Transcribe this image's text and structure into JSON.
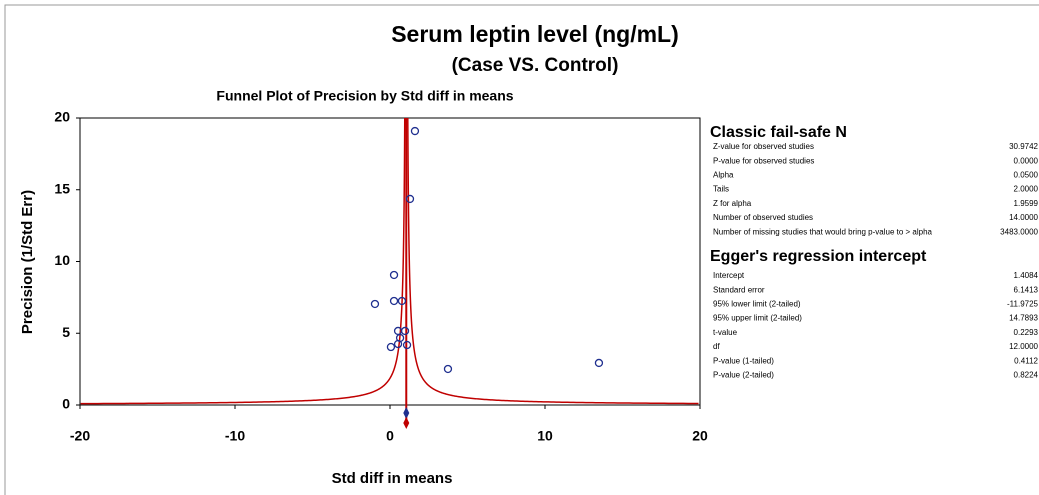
{
  "chart_data": {
    "type": "funnel-scatter",
    "title": "Serum leptin level (ng/mL)",
    "subtitle": "(Case VS. Control)",
    "plot_title": "Funnel Plot of Precision by Std diff in means",
    "x_label": "Std diff in means",
    "y_label": "Precision (1/Std Err)",
    "x": [
      1.61,
      1.29,
      0.26,
      -0.97,
      0.26,
      0.77,
      0.52,
      0.97,
      0.65,
      0.52,
      0.06,
      1.1,
      3.74,
      13.48
    ],
    "values": [
      19.09,
      14.36,
      9.06,
      7.04,
      7.25,
      7.25,
      5.16,
      5.16,
      4.67,
      4.25,
      4.04,
      4.18,
      2.51,
      2.93
    ],
    "point_color": "#1f2f8f",
    "funnel_color": "#c00000",
    "combined_effect": 1.05,
    "xlim": [
      -20,
      20
    ],
    "ylim": [
      0,
      20
    ],
    "xticks": [
      -20,
      -10,
      0,
      10,
      20
    ],
    "yticks": [
      0,
      5,
      10,
      15,
      20
    ]
  },
  "panel": {
    "fail_safe": {
      "heading": "Classic fail-safe N",
      "rows": [
        [
          "Z-value for observed studies",
          "30.9742"
        ],
        [
          "P-value for observed studies",
          "0.0000"
        ],
        [
          "Alpha",
          "0.0500"
        ],
        [
          "Tails",
          "2.0000"
        ],
        [
          "Z for alpha",
          "1.9599"
        ],
        [
          "Number of observed studies",
          "14.0000"
        ],
        [
          "Number of missing studies that would bring p-value to > alpha",
          "3483.0000"
        ]
      ]
    },
    "egger": {
      "heading": "Egger's regression intercept",
      "rows": [
        [
          "Intercept",
          "1.4084"
        ],
        [
          "Standard error",
          "6.1413"
        ],
        [
          "95% lower limit (2-tailed)",
          "-11.9725"
        ],
        [
          "95% upper limit (2-tailed)",
          "14.7893"
        ],
        [
          "t-value",
          "0.2293"
        ],
        [
          "df",
          "12.0000"
        ],
        [
          "P-value (1-tailed)",
          "0.4112"
        ],
        [
          "P-value (2-tailed)",
          "0.8224"
        ]
      ]
    }
  }
}
